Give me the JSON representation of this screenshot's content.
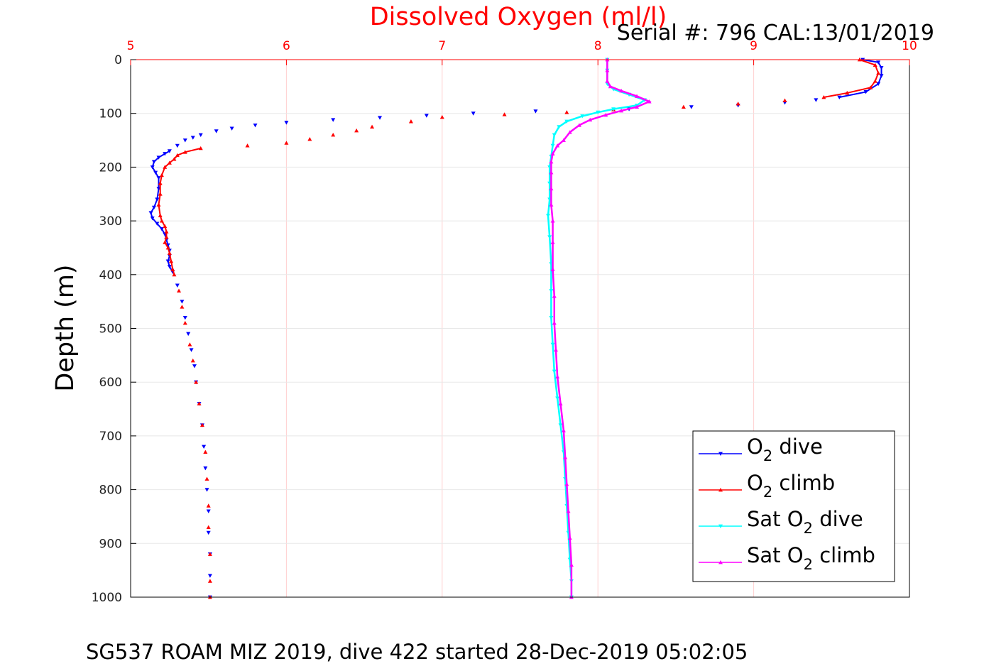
{
  "chart_data": {
    "type": "scatter",
    "title": "Dissolved Oxygen (ml/l)",
    "serial_text": "Serial #: 796  CAL:13/01/2019",
    "ylabel": "Depth (m)",
    "footer": "SG537 ROAM MIZ 2019, dive 422 started 28-Dec-2019 05:02:05",
    "xlim": [
      5,
      10
    ],
    "ylim": [
      0,
      1000
    ],
    "y_reversed": true,
    "x_axis_position": "top",
    "x_ticks": [
      "5",
      "6",
      "7",
      "8",
      "9",
      "10"
    ],
    "y_ticks": [
      "0",
      "100",
      "200",
      "300",
      "400",
      "500",
      "600",
      "700",
      "800",
      "900",
      "1000"
    ],
    "grid": true,
    "legend_position": "bottom-right",
    "colors": {
      "title": "#ff0000",
      "x_ticks": "#ff0000",
      "grid": "#e8e8e8",
      "x_grid": "#ffd0d0"
    },
    "series": [
      {
        "name": "O2 dive",
        "legend": {
          "pre": "O",
          "sub": "2",
          "post": " dive"
        },
        "color": "#0000ff",
        "marker": "triangle-down",
        "points": [
          [
            9.7,
            0
          ],
          [
            9.8,
            5
          ],
          [
            9.82,
            15
          ],
          [
            9.82,
            30
          ],
          [
            9.8,
            45
          ],
          [
            9.72,
            60
          ],
          [
            9.55,
            70
          ],
          [
            9.4,
            75
          ],
          [
            9.2,
            80
          ],
          [
            8.9,
            85
          ],
          [
            8.6,
            88
          ],
          [
            8.2,
            92
          ],
          [
            7.6,
            96
          ],
          [
            7.2,
            100
          ],
          [
            6.9,
            104
          ],
          [
            6.6,
            108
          ],
          [
            6.3,
            112
          ],
          [
            6.0,
            117
          ],
          [
            5.8,
            122
          ],
          [
            5.65,
            128
          ],
          [
            5.55,
            133
          ],
          [
            5.45,
            140
          ],
          [
            5.4,
            145
          ],
          [
            5.35,
            150
          ],
          [
            5.3,
            160
          ],
          [
            5.25,
            170
          ],
          [
            5.22,
            175
          ],
          [
            5.18,
            182
          ],
          [
            5.15,
            190
          ],
          [
            5.14,
            200
          ],
          [
            5.16,
            210
          ],
          [
            5.18,
            220
          ],
          [
            5.18,
            240
          ],
          [
            5.17,
            260
          ],
          [
            5.15,
            275
          ],
          [
            5.13,
            285
          ],
          [
            5.14,
            295
          ],
          [
            5.17,
            305
          ],
          [
            5.2,
            315
          ],
          [
            5.22,
            325
          ],
          [
            5.23,
            335
          ],
          [
            5.24,
            345
          ],
          [
            5.25,
            355
          ],
          [
            5.25,
            365
          ],
          [
            5.24,
            375
          ],
          [
            5.25,
            385
          ],
          [
            5.27,
            395
          ],
          [
            5.3,
            420
          ],
          [
            5.33,
            450
          ],
          [
            5.35,
            480
          ],
          [
            5.37,
            510
          ],
          [
            5.39,
            540
          ],
          [
            5.41,
            570
          ],
          [
            5.42,
            600
          ],
          [
            5.44,
            640
          ],
          [
            5.46,
            680
          ],
          [
            5.47,
            720
          ],
          [
            5.48,
            760
          ],
          [
            5.49,
            800
          ],
          [
            5.5,
            840
          ],
          [
            5.5,
            880
          ],
          [
            5.51,
            920
          ],
          [
            5.51,
            960
          ],
          [
            5.51,
            1000
          ]
        ]
      },
      {
        "name": "O2 climb",
        "legend": {
          "pre": "O",
          "sub": "2",
          "post": " climb"
        },
        "color": "#ff0000",
        "marker": "triangle-up",
        "points": [
          [
            9.68,
            0
          ],
          [
            9.78,
            10
          ],
          [
            9.8,
            25
          ],
          [
            9.78,
            40
          ],
          [
            9.75,
            52
          ],
          [
            9.6,
            62
          ],
          [
            9.45,
            70
          ],
          [
            9.2,
            76
          ],
          [
            8.9,
            82
          ],
          [
            8.55,
            88
          ],
          [
            8.1,
            93
          ],
          [
            7.8,
            98
          ],
          [
            7.4,
            102
          ],
          [
            7.0,
            107
          ],
          [
            6.8,
            115
          ],
          [
            6.55,
            125
          ],
          [
            6.45,
            132
          ],
          [
            6.3,
            140
          ],
          [
            6.15,
            148
          ],
          [
            6.0,
            155
          ],
          [
            5.75,
            160
          ],
          [
            5.45,
            165
          ],
          [
            5.35,
            172
          ],
          [
            5.3,
            178
          ],
          [
            5.28,
            185
          ],
          [
            5.25,
            192
          ],
          [
            5.22,
            200
          ],
          [
            5.2,
            215
          ],
          [
            5.19,
            230
          ],
          [
            5.19,
            250
          ],
          [
            5.18,
            270
          ],
          [
            5.19,
            290
          ],
          [
            5.2,
            300
          ],
          [
            5.22,
            310
          ],
          [
            5.23,
            320
          ],
          [
            5.23,
            330
          ],
          [
            5.22,
            340
          ],
          [
            5.24,
            350
          ],
          [
            5.25,
            360
          ],
          [
            5.26,
            375
          ],
          [
            5.27,
            390
          ],
          [
            5.28,
            400
          ],
          [
            5.31,
            430
          ],
          [
            5.33,
            460
          ],
          [
            5.35,
            490
          ],
          [
            5.38,
            530
          ],
          [
            5.4,
            560
          ],
          [
            5.42,
            600
          ],
          [
            5.44,
            640
          ],
          [
            5.46,
            680
          ],
          [
            5.48,
            730
          ],
          [
            5.49,
            780
          ],
          [
            5.5,
            830
          ],
          [
            5.5,
            870
          ],
          [
            5.51,
            920
          ],
          [
            5.51,
            970
          ],
          [
            5.51,
            1000
          ]
        ]
      },
      {
        "name": "Sat O2 dive",
        "legend": {
          "pre": "Sat O",
          "sub": "2",
          "post": " dive"
        },
        "color": "#00ffff",
        "marker": "triangle-down",
        "points": [
          [
            8.06,
            0
          ],
          [
            8.06,
            20
          ],
          [
            8.06,
            45
          ],
          [
            8.1,
            55
          ],
          [
            8.2,
            65
          ],
          [
            8.3,
            75
          ],
          [
            8.25,
            85
          ],
          [
            8.1,
            92
          ],
          [
            8.0,
            98
          ],
          [
            7.9,
            105
          ],
          [
            7.8,
            115
          ],
          [
            7.75,
            125
          ],
          [
            7.72,
            140
          ],
          [
            7.71,
            160
          ],
          [
            7.7,
            180
          ],
          [
            7.69,
            200
          ],
          [
            7.69,
            230
          ],
          [
            7.69,
            260
          ],
          [
            7.68,
            290
          ],
          [
            7.69,
            330
          ],
          [
            7.7,
            380
          ],
          [
            7.7,
            430
          ],
          [
            7.7,
            480
          ],
          [
            7.71,
            530
          ],
          [
            7.72,
            580
          ],
          [
            7.74,
            630
          ],
          [
            7.76,
            680
          ],
          [
            7.78,
            730
          ],
          [
            7.79,
            780
          ],
          [
            7.8,
            830
          ],
          [
            7.81,
            880
          ],
          [
            7.82,
            930
          ],
          [
            7.83,
            970
          ],
          [
            7.83,
            1000
          ]
        ]
      },
      {
        "name": "Sat O2 climb",
        "legend": {
          "pre": "Sat O",
          "sub": "2",
          "post": " climb"
        },
        "color": "#ff00ff",
        "marker": "triangle-up",
        "points": [
          [
            8.06,
            0
          ],
          [
            8.06,
            20
          ],
          [
            8.06,
            40
          ],
          [
            8.08,
            50
          ],
          [
            8.15,
            58
          ],
          [
            8.25,
            68
          ],
          [
            8.33,
            78
          ],
          [
            8.25,
            88
          ],
          [
            8.15,
            95
          ],
          [
            8.05,
            103
          ],
          [
            7.95,
            112
          ],
          [
            7.88,
            122
          ],
          [
            7.82,
            135
          ],
          [
            7.78,
            150
          ],
          [
            7.74,
            160
          ],
          [
            7.71,
            175
          ],
          [
            7.7,
            190
          ],
          [
            7.7,
            210
          ],
          [
            7.7,
            240
          ],
          [
            7.7,
            270
          ],
          [
            7.71,
            300
          ],
          [
            7.71,
            340
          ],
          [
            7.71,
            390
          ],
          [
            7.72,
            440
          ],
          [
            7.72,
            490
          ],
          [
            7.73,
            540
          ],
          [
            7.74,
            590
          ],
          [
            7.76,
            640
          ],
          [
            7.78,
            690
          ],
          [
            7.79,
            740
          ],
          [
            7.8,
            790
          ],
          [
            7.81,
            840
          ],
          [
            7.82,
            890
          ],
          [
            7.83,
            940
          ],
          [
            7.83,
            1000
          ]
        ]
      }
    ]
  }
}
